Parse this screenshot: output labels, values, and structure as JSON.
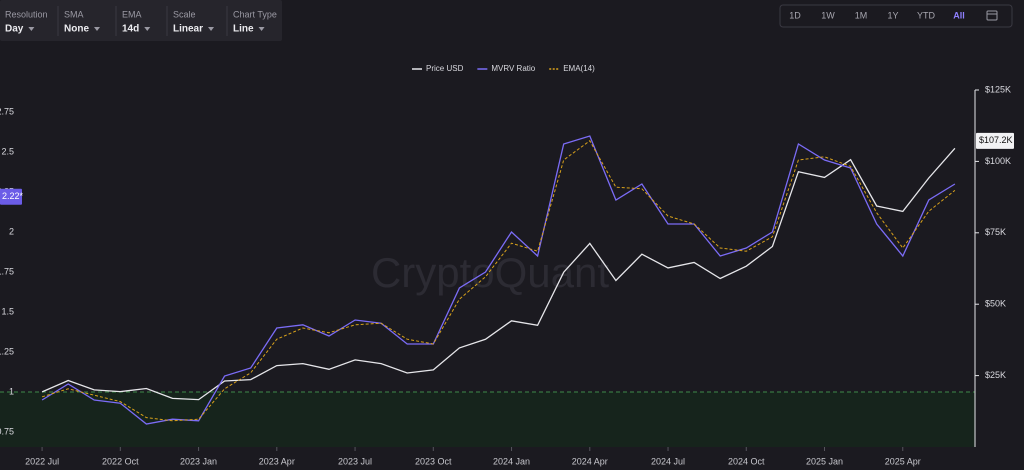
{
  "controls": [
    {
      "label": "Resolution",
      "value": "Day"
    },
    {
      "label": "SMA",
      "value": "None"
    },
    {
      "label": "EMA",
      "value": "14d"
    },
    {
      "label": "Scale",
      "value": "Linear"
    },
    {
      "label": "Chart Type",
      "value": "Line"
    }
  ],
  "ranges": [
    "1D",
    "1W",
    "1M",
    "1Y",
    "YTD",
    "All"
  ],
  "selected_range": 5,
  "chart_data": {
    "type": "line",
    "watermark": "CryptoQuant",
    "x": [
      "2022-07",
      "2022-08",
      "2022-09",
      "2022-10",
      "2022-11",
      "2022-12",
      "2023-01",
      "2023-02",
      "2023-03",
      "2023-04",
      "2023-05",
      "2023-06",
      "2023-07",
      "2023-08",
      "2023-09",
      "2023-10",
      "2023-11",
      "2023-12",
      "2024-01",
      "2024-02",
      "2024-03",
      "2024-04",
      "2024-05",
      "2024-06",
      "2024-07",
      "2024-08",
      "2024-09",
      "2024-10",
      "2024-11",
      "2024-12",
      "2025-01",
      "2025-02",
      "2025-03",
      "2025-04",
      "2025-05",
      "2025-06"
    ],
    "xlim": [
      "2022-06",
      "2025-07"
    ],
    "xticks": [
      {
        "value": "2022-07",
        "label": "2022 Jul"
      },
      {
        "value": "2022-10",
        "label": "2022 Oct"
      },
      {
        "value": "2023-01",
        "label": "2023 Jan"
      },
      {
        "value": "2023-04",
        "label": "2023 Apr"
      },
      {
        "value": "2023-07",
        "label": "2023 Jul"
      },
      {
        "value": "2023-10",
        "label": "2023 Oct"
      },
      {
        "value": "2024-01",
        "label": "2024 Jan"
      },
      {
        "value": "2024-04",
        "label": "2024 Apr"
      },
      {
        "value": "2024-07",
        "label": "2024 Jul"
      },
      {
        "value": "2024-10",
        "label": "2024 Oct"
      },
      {
        "value": "2025-01",
        "label": "2025 Jan"
      },
      {
        "value": "2025-04",
        "label": "2025 Apr"
      }
    ],
    "series": [
      {
        "name": "Price USD",
        "color": "#e6e6ea",
        "axis": "y2",
        "values": [
          19300,
          23300,
          20000,
          19400,
          20500,
          17000,
          16600,
          23100,
          23600,
          28500,
          29200,
          27200,
          30500,
          29200,
          25900,
          27000,
          34700,
          37700,
          44200,
          42600,
          61200,
          71300,
          58300,
          67500,
          62700,
          64600,
          59000,
          63300,
          70200,
          96400,
          94400,
          100600,
          84400,
          82500,
          94200,
          104600
        ]
      },
      {
        "name": "MVRV Ratio",
        "color": "#7b6cf6",
        "axis": "y",
        "values": [
          0.95,
          1.05,
          0.95,
          0.93,
          0.8,
          0.83,
          0.82,
          1.1,
          1.15,
          1.4,
          1.42,
          1.35,
          1.45,
          1.43,
          1.3,
          1.3,
          1.65,
          1.75,
          2.0,
          1.85,
          2.55,
          2.6,
          2.2,
          2.3,
          2.05,
          2.05,
          1.85,
          1.9,
          2.0,
          2.55,
          2.45,
          2.4,
          2.05,
          1.85,
          2.2,
          2.3
        ]
      },
      {
        "name": "EMA(14)",
        "color": "#d9a21b",
        "axis": "y",
        "dash": true,
        "values": [
          0.97,
          1.02,
          0.98,
          0.94,
          0.84,
          0.82,
          0.83,
          1.02,
          1.12,
          1.33,
          1.4,
          1.37,
          1.42,
          1.43,
          1.33,
          1.3,
          1.58,
          1.72,
          1.93,
          1.88,
          2.45,
          2.57,
          2.28,
          2.27,
          2.1,
          2.05,
          1.9,
          1.88,
          1.97,
          2.45,
          2.47,
          2.41,
          2.12,
          1.9,
          2.13,
          2.26
        ]
      }
    ],
    "ylim": [
      0.656,
      2.8875
    ],
    "yticks": [
      0.75,
      1,
      1.25,
      1.5,
      1.75,
      2,
      2.25,
      2.5,
      2.75
    ],
    "y2lim": [
      0,
      125000
    ],
    "y2ticks": [
      {
        "value": 25000,
        "label": "$25K"
      },
      {
        "value": 50000,
        "label": "$50K"
      },
      {
        "value": 75000,
        "label": "$75K"
      },
      {
        "value": 100000,
        "label": "$100K"
      },
      {
        "value": 125000,
        "label": "$125K"
      }
    ],
    "baseline": 1,
    "last_price": {
      "value": 107200,
      "label": "$107.2K"
    },
    "last_ratio": {
      "value": 2.22,
      "label": "2.22*"
    }
  }
}
